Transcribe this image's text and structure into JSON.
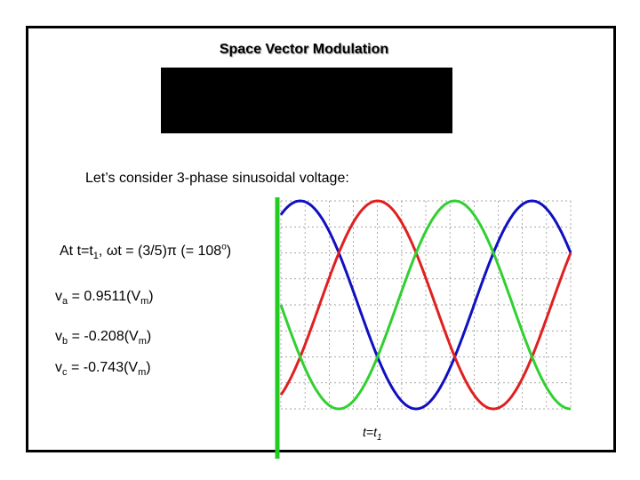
{
  "title": "Space Vector Modulation",
  "intro": "Let’s consider 3-phase sinusoidal voltage:",
  "at_line": {
    "pre": "At t=t",
    "sub": "1",
    "mid": ", ",
    "omega": "ω",
    "post": "t = (3/5)",
    "pi": "π",
    "paren": " (= 108",
    "deg": "o",
    "close": ")"
  },
  "va": {
    "v": "v",
    "sub": "a",
    "eq": " = 0.9511(V",
    "msub": "m",
    "close": ")"
  },
  "vb": {
    "v": "v",
    "sub": "b",
    "eq": " = -0.208(V",
    "msub": "m",
    "close": ")"
  },
  "vc": {
    "v": "v",
    "sub": "c",
    "eq": " = -0.743(V",
    "msub": "m",
    "close": ")"
  },
  "t1_label": {
    "t": "t=t",
    "sub": "1"
  },
  "chart_data": {
    "type": "line",
    "series": [
      {
        "color": "#1010c0",
        "phase_deg": 0
      },
      {
        "color": "#e02020",
        "phase_deg": -120
      },
      {
        "color": "#30d030",
        "phase_deg": 120
      }
    ],
    "x_range_deg": [
      -30,
      420
    ],
    "ylim": [
      -1,
      1
    ],
    "marker_deg": 108,
    "grid": true,
    "marker_color": "#22cc22"
  }
}
